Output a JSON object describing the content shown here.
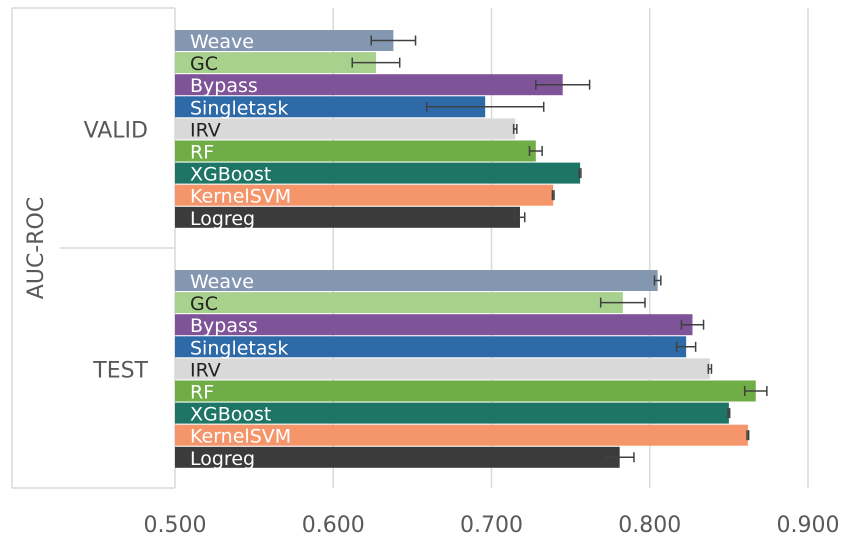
{
  "chart_data": {
    "type": "bar",
    "orientation": "horizontal",
    "ylabel": "AUC-ROC",
    "xlim": [
      0.5,
      0.9
    ],
    "x_ticks": [
      "0.500",
      "0.600",
      "0.700",
      "0.800",
      "0.900"
    ],
    "grid": true,
    "series_order": [
      "Weave",
      "GC",
      "Bypass",
      "Singletask",
      "IRV",
      "RF",
      "XGBoost",
      "KernelSVM",
      "Logreg"
    ],
    "colors": {
      "Weave": "#8497b0",
      "GC": "#a9d18e",
      "Bypass": "#7e5398",
      "Singletask": "#2e6aa8",
      "IRV": "#d9d9d9",
      "RF": "#70ad47",
      "XGBoost": "#1e7566",
      "KernelSVM": "#f4956a",
      "Logreg": "#3b3b3b"
    },
    "label_colors": {
      "Weave": "#ffffff",
      "GC": "#222222",
      "Bypass": "#ffffff",
      "Singletask": "#ffffff",
      "IRV": "#222222",
      "RF": "#ffffff",
      "XGBoost": "#ffffff",
      "KernelSVM": "#ffffff",
      "Logreg": "#ffffff"
    },
    "groups": [
      {
        "name": "VALID",
        "bars": [
          {
            "label": "Weave",
            "value": 0.638,
            "error": 0.014
          },
          {
            "label": "GC",
            "value": 0.627,
            "error": 0.015
          },
          {
            "label": "Bypass",
            "value": 0.745,
            "error": 0.017
          },
          {
            "label": "Singletask",
            "value": 0.696,
            "error": 0.037
          },
          {
            "label": "IRV",
            "value": 0.715,
            "error": 0.001
          },
          {
            "label": "RF",
            "value": 0.728,
            "error": 0.004
          },
          {
            "label": "XGBoost",
            "value": 0.756,
            "error": 0.0005
          },
          {
            "label": "KernelSVM",
            "value": 0.739,
            "error": 0.0005
          },
          {
            "label": "Logreg",
            "value": 0.718,
            "error": 0.003
          }
        ]
      },
      {
        "name": "TEST",
        "bars": [
          {
            "label": "Weave",
            "value": 0.805,
            "error": 0.002
          },
          {
            "label": "GC",
            "value": 0.783,
            "error": 0.014
          },
          {
            "label": "Bypass",
            "value": 0.827,
            "error": 0.007
          },
          {
            "label": "Singletask",
            "value": 0.823,
            "error": 0.006
          },
          {
            "label": "IRV",
            "value": 0.838,
            "error": 0.001
          },
          {
            "label": "RF",
            "value": 0.867,
            "error": 0.007
          },
          {
            "label": "XGBoost",
            "value": 0.85,
            "error": 0.0005
          },
          {
            "label": "KernelSVM",
            "value": 0.862,
            "error": 0.0005
          },
          {
            "label": "Logreg",
            "value": 0.781,
            "error": 0.009
          }
        ]
      }
    ]
  }
}
